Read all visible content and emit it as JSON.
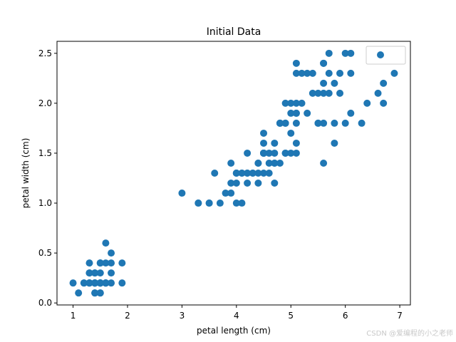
{
  "watermark": "CSDN @爱编程的小之老师",
  "chart_data": {
    "type": "scatter",
    "title": "Initial Data",
    "xlabel": "petal length (cm)",
    "ylabel": "petal width (cm)",
    "xlim": [
      0.705,
      7.195
    ],
    "ylim": [
      -0.02,
      2.62
    ],
    "xticks": [
      1,
      2,
      3,
      4,
      5,
      6,
      7
    ],
    "xtick_labels": [
      "1",
      "2",
      "3",
      "4",
      "5",
      "6",
      "7"
    ],
    "yticks": [
      0.0,
      0.5,
      1.0,
      1.5,
      2.0,
      2.5
    ],
    "ytick_labels": [
      "0.0",
      "0.5",
      "1.0",
      "1.5",
      "2.0",
      "2.5"
    ],
    "grid": false,
    "legend": {
      "position": "top-right",
      "entries": [
        ""
      ]
    },
    "series": [
      {
        "color": "#1f77b4",
        "points": [
          [
            1.4,
            0.2
          ],
          [
            1.4,
            0.2
          ],
          [
            1.3,
            0.2
          ],
          [
            1.5,
            0.2
          ],
          [
            1.4,
            0.2
          ],
          [
            1.7,
            0.4
          ],
          [
            1.4,
            0.3
          ],
          [
            1.5,
            0.2
          ],
          [
            1.4,
            0.2
          ],
          [
            1.5,
            0.1
          ],
          [
            1.5,
            0.2
          ],
          [
            1.6,
            0.2
          ],
          [
            1.4,
            0.1
          ],
          [
            1.1,
            0.1
          ],
          [
            1.2,
            0.2
          ],
          [
            1.5,
            0.4
          ],
          [
            1.3,
            0.4
          ],
          [
            1.4,
            0.3
          ],
          [
            1.7,
            0.3
          ],
          [
            1.5,
            0.3
          ],
          [
            1.7,
            0.2
          ],
          [
            1.5,
            0.4
          ],
          [
            1.0,
            0.2
          ],
          [
            1.7,
            0.5
          ],
          [
            1.9,
            0.2
          ],
          [
            1.6,
            0.2
          ],
          [
            1.6,
            0.4
          ],
          [
            1.5,
            0.2
          ],
          [
            1.4,
            0.2
          ],
          [
            1.6,
            0.2
          ],
          [
            1.6,
            0.2
          ],
          [
            1.5,
            0.4
          ],
          [
            1.5,
            0.1
          ],
          [
            1.4,
            0.2
          ],
          [
            1.5,
            0.2
          ],
          [
            1.2,
            0.2
          ],
          [
            1.3,
            0.2
          ],
          [
            1.4,
            0.1
          ],
          [
            1.3,
            0.2
          ],
          [
            1.5,
            0.2
          ],
          [
            1.3,
            0.3
          ],
          [
            1.3,
            0.3
          ],
          [
            1.3,
            0.2
          ],
          [
            1.6,
            0.6
          ],
          [
            1.9,
            0.4
          ],
          [
            1.4,
            0.3
          ],
          [
            1.6,
            0.2
          ],
          [
            1.4,
            0.2
          ],
          [
            1.5,
            0.2
          ],
          [
            1.4,
            0.2
          ],
          [
            4.7,
            1.4
          ],
          [
            4.5,
            1.5
          ],
          [
            4.9,
            1.5
          ],
          [
            4.0,
            1.3
          ],
          [
            4.6,
            1.5
          ],
          [
            4.5,
            1.3
          ],
          [
            4.7,
            1.6
          ],
          [
            3.3,
            1.0
          ],
          [
            4.6,
            1.3
          ],
          [
            3.9,
            1.4
          ],
          [
            3.5,
            1.0
          ],
          [
            4.2,
            1.5
          ],
          [
            4.0,
            1.0
          ],
          [
            4.7,
            1.4
          ],
          [
            3.6,
            1.3
          ],
          [
            4.4,
            1.4
          ],
          [
            4.5,
            1.5
          ],
          [
            4.1,
            1.0
          ],
          [
            4.5,
            1.5
          ],
          [
            3.9,
            1.1
          ],
          [
            4.8,
            1.8
          ],
          [
            4.0,
            1.3
          ],
          [
            4.9,
            1.5
          ],
          [
            4.7,
            1.2
          ],
          [
            4.3,
            1.3
          ],
          [
            4.4,
            1.4
          ],
          [
            4.8,
            1.4
          ],
          [
            5.0,
            1.7
          ],
          [
            4.5,
            1.5
          ],
          [
            3.5,
            1.0
          ],
          [
            3.8,
            1.1
          ],
          [
            3.7,
            1.0
          ],
          [
            3.9,
            1.2
          ],
          [
            5.1,
            1.6
          ],
          [
            4.5,
            1.5
          ],
          [
            4.5,
            1.6
          ],
          [
            4.7,
            1.5
          ],
          [
            4.4,
            1.3
          ],
          [
            4.1,
            1.3
          ],
          [
            4.0,
            1.3
          ],
          [
            4.4,
            1.2
          ],
          [
            4.6,
            1.4
          ],
          [
            4.0,
            1.2
          ],
          [
            3.3,
            1.0
          ],
          [
            4.2,
            1.3
          ],
          [
            4.2,
            1.2
          ],
          [
            4.2,
            1.3
          ],
          [
            4.3,
            1.3
          ],
          [
            3.0,
            1.1
          ],
          [
            4.1,
            1.3
          ],
          [
            6.0,
            2.5
          ],
          [
            5.1,
            1.9
          ],
          [
            5.9,
            2.1
          ],
          [
            5.6,
            1.8
          ],
          [
            5.8,
            2.2
          ],
          [
            6.6,
            2.1
          ],
          [
            4.5,
            1.7
          ],
          [
            6.3,
            1.8
          ],
          [
            5.8,
            1.8
          ],
          [
            6.1,
            2.5
          ],
          [
            5.1,
            2.0
          ],
          [
            5.3,
            1.9
          ],
          [
            5.5,
            2.1
          ],
          [
            5.0,
            2.0
          ],
          [
            5.1,
            2.4
          ],
          [
            5.3,
            2.3
          ],
          [
            5.5,
            1.8
          ],
          [
            6.7,
            2.2
          ],
          [
            6.9,
            2.3
          ],
          [
            5.0,
            1.5
          ],
          [
            5.7,
            2.3
          ],
          [
            4.9,
            2.0
          ],
          [
            6.7,
            2.0
          ],
          [
            4.9,
            1.8
          ],
          [
            5.7,
            2.1
          ],
          [
            6.0,
            1.8
          ],
          [
            4.8,
            1.8
          ],
          [
            4.9,
            1.8
          ],
          [
            5.6,
            2.1
          ],
          [
            5.8,
            1.6
          ],
          [
            6.1,
            1.9
          ],
          [
            6.4,
            2.0
          ],
          [
            5.6,
            2.2
          ],
          [
            5.1,
            1.5
          ],
          [
            5.6,
            1.4
          ],
          [
            6.1,
            2.3
          ],
          [
            5.6,
            2.4
          ],
          [
            5.5,
            1.8
          ],
          [
            4.8,
            1.8
          ],
          [
            5.4,
            2.1
          ],
          [
            5.6,
            2.4
          ],
          [
            5.1,
            2.3
          ],
          [
            5.1,
            1.9
          ],
          [
            5.9,
            2.3
          ],
          [
            5.7,
            2.5
          ],
          [
            5.2,
            2.3
          ],
          [
            5.0,
            1.9
          ],
          [
            5.2,
            2.0
          ],
          [
            5.4,
            2.3
          ],
          [
            5.1,
            1.8
          ]
        ]
      }
    ]
  }
}
